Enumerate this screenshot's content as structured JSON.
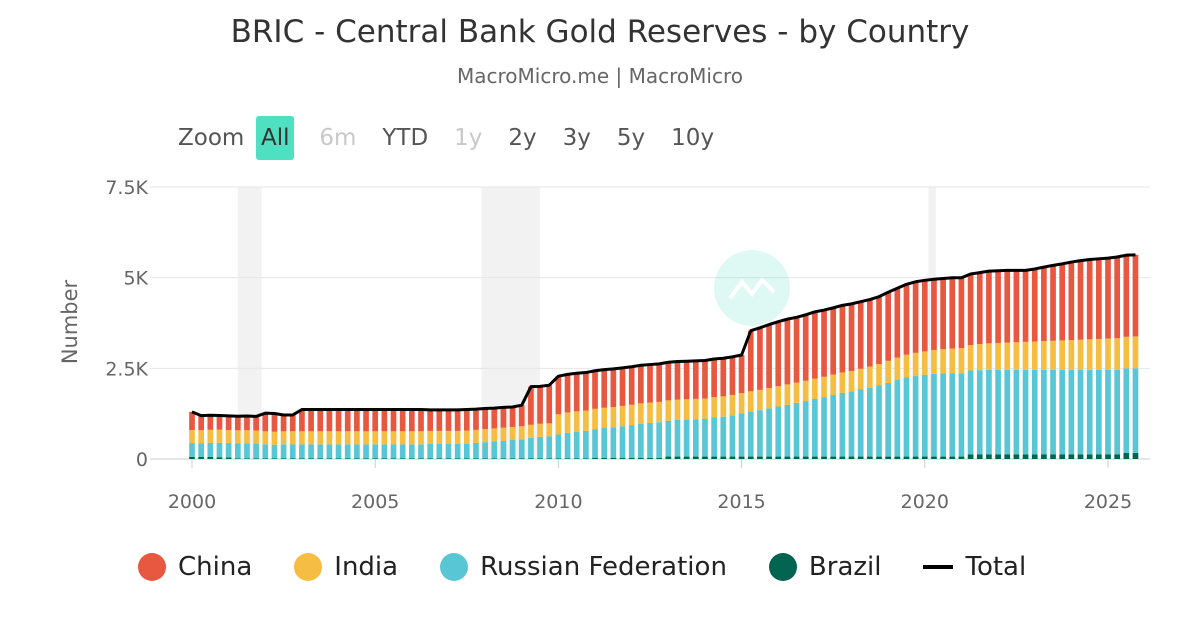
{
  "header": {
    "title": "BRIC - Central Bank Gold Reserves - by Country",
    "subtitle": "MacroMicro.me | MacroMicro"
  },
  "zoom": {
    "label": "Zoom",
    "buttons": [
      {
        "label": "All",
        "state": "active"
      },
      {
        "label": "6m",
        "state": "disabled"
      },
      {
        "label": "YTD",
        "state": "normal"
      },
      {
        "label": "1y",
        "state": "disabled"
      },
      {
        "label": "2y",
        "state": "normal"
      },
      {
        "label": "3y",
        "state": "normal"
      },
      {
        "label": "5y",
        "state": "normal"
      },
      {
        "label": "10y",
        "state": "normal"
      }
    ]
  },
  "colors": {
    "china": "#e8573f",
    "india": "#f6bd43",
    "russia": "#58c6d4",
    "brazil": "#006450",
    "total": "#000000",
    "accent": "#4fe0c1"
  },
  "chart_data": {
    "type": "bar",
    "stacked": true,
    "ylabel": "Number",
    "xlabel": "",
    "ylim": [
      0,
      7500
    ],
    "yticks": [
      {
        "value": 0,
        "label": "0"
      },
      {
        "value": 2500,
        "label": "2.5K"
      },
      {
        "value": 5000,
        "label": "5K"
      },
      {
        "value": 7500,
        "label": "7.5K"
      }
    ],
    "xlim": [
      2000,
      2026
    ],
    "xticks": [
      2000,
      2005,
      2010,
      2015,
      2020,
      2025
    ],
    "recessions": [
      [
        2001.25,
        2001.9
      ],
      [
        2007.9,
        2009.5
      ],
      [
        2020.1,
        2020.3
      ]
    ],
    "quarters": [
      2000.0,
      2000.25,
      2000.5,
      2000.75,
      2001.0,
      2001.25,
      2001.5,
      2001.75,
      2002.0,
      2002.25,
      2002.5,
      2002.75,
      2003.0,
      2003.25,
      2003.5,
      2003.75,
      2004.0,
      2004.25,
      2004.5,
      2004.75,
      2005.0,
      2005.25,
      2005.5,
      2005.75,
      2006.0,
      2006.25,
      2006.5,
      2006.75,
      2007.0,
      2007.25,
      2007.5,
      2007.75,
      2008.0,
      2008.25,
      2008.5,
      2008.75,
      2009.0,
      2009.25,
      2009.5,
      2009.75,
      2010.0,
      2010.25,
      2010.5,
      2010.75,
      2011.0,
      2011.25,
      2011.5,
      2011.75,
      2012.0,
      2012.25,
      2012.5,
      2012.75,
      2013.0,
      2013.25,
      2013.5,
      2013.75,
      2014.0,
      2014.25,
      2014.5,
      2014.75,
      2015.0,
      2015.25,
      2015.5,
      2015.75,
      2016.0,
      2016.25,
      2016.5,
      2016.75,
      2017.0,
      2017.25,
      2017.5,
      2017.75,
      2018.0,
      2018.25,
      2018.5,
      2018.75,
      2019.0,
      2019.25,
      2019.5,
      2019.75,
      2020.0,
      2020.25,
      2020.5,
      2020.75,
      2021.0,
      2021.25,
      2021.5,
      2021.75,
      2022.0,
      2022.25,
      2022.5,
      2022.75,
      2023.0,
      2023.25,
      2023.5,
      2023.75,
      2024.0,
      2024.25,
      2024.5,
      2024.75,
      2025.0,
      2025.25,
      2025.5,
      2025.75
    ],
    "series": [
      {
        "name": "Brazil",
        "key": "brazil",
        "values": [
          60,
          55,
          55,
          50,
          40,
          20,
          14,
          14,
          14,
          14,
          14,
          14,
          14,
          14,
          14,
          14,
          14,
          14,
          14,
          14,
          14,
          14,
          14,
          14,
          14,
          14,
          14,
          14,
          14,
          14,
          14,
          14,
          14,
          14,
          14,
          14,
          14,
          14,
          14,
          14,
          14,
          14,
          14,
          14,
          34,
          34,
          34,
          34,
          34,
          34,
          34,
          34,
          67,
          67,
          67,
          67,
          67,
          67,
          67,
          67,
          67,
          67,
          67,
          67,
          67,
          67,
          67,
          67,
          67,
          67,
          67,
          67,
          67,
          67,
          67,
          67,
          67,
          67,
          67,
          67,
          67,
          67,
          67,
          67,
          67,
          130,
          130,
          130,
          130,
          130,
          130,
          130,
          130,
          130,
          130,
          130,
          130,
          130,
          130,
          130,
          130,
          130,
          170,
          170
        ]
      },
      {
        "name": "Russian Federation",
        "key": "russia",
        "values": [
          380,
          380,
          390,
          400,
          400,
          410,
          420,
          410,
          390,
          380,
          390,
          390,
          390,
          390,
          390,
          390,
          390,
          390,
          390,
          390,
          390,
          390,
          390,
          390,
          390,
          390,
          400,
          400,
          400,
          400,
          410,
          430,
          450,
          470,
          490,
          510,
          530,
          570,
          600,
          610,
          660,
          710,
          740,
          760,
          790,
          820,
          840,
          870,
          900,
          940,
          960,
          980,
          990,
          1010,
          1020,
          1030,
          1040,
          1080,
          1100,
          1140,
          1190,
          1240,
          1280,
          1330,
          1380,
          1430,
          1480,
          1530,
          1590,
          1640,
          1700,
          1760,
          1800,
          1860,
          1900,
          1960,
          2030,
          2110,
          2180,
          2220,
          2250,
          2280,
          2290,
          2300,
          2300,
          2310,
          2320,
          2330,
          2330,
          2330,
          2330,
          2330,
          2330,
          2330,
          2330,
          2330,
          2330,
          2330,
          2330,
          2330,
          2330,
          2330,
          2330,
          2330
        ]
      },
      {
        "name": "India",
        "key": "india",
        "values": [
          360,
          360,
          360,
          360,
          360,
          360,
          360,
          360,
          360,
          360,
          360,
          360,
          360,
          360,
          360,
          360,
          360,
          360,
          360,
          360,
          360,
          360,
          360,
          360,
          360,
          360,
          360,
          360,
          360,
          360,
          360,
          360,
          360,
          360,
          360,
          360,
          360,
          360,
          360,
          360,
          560,
          560,
          560,
          560,
          560,
          560,
          560,
          560,
          560,
          560,
          560,
          560,
          560,
          560,
          560,
          560,
          560,
          560,
          560,
          560,
          560,
          560,
          560,
          560,
          560,
          560,
          560,
          560,
          560,
          560,
          560,
          560,
          560,
          560,
          580,
          590,
          610,
          620,
          630,
          640,
          650,
          660,
          670,
          680,
          690,
          700,
          720,
          730,
          740,
          750,
          760,
          770,
          780,
          790,
          800,
          810,
          820,
          830,
          840,
          850,
          860,
          870,
          870,
          880
        ]
      },
      {
        "name": "China",
        "key": "china",
        "values": [
          500,
          400,
          400,
          390,
          390,
          390,
          390,
          390,
          500,
          500,
          450,
          450,
          600,
          600,
          600,
          600,
          600,
          600,
          600,
          600,
          600,
          600,
          600,
          600,
          600,
          600,
          580,
          580,
          580,
          580,
          580,
          570,
          570,
          560,
          560,
          550,
          580,
          1050,
          1010,
          1050,
          1050,
          1050,
          1050,
          1050,
          1050,
          1050,
          1050,
          1050,
          1050,
          1050,
          1050,
          1050,
          1050,
          1050,
          1050,
          1050,
          1050,
          1050,
          1050,
          1050,
          1050,
          1670,
          1710,
          1750,
          1780,
          1800,
          1800,
          1820,
          1840,
          1840,
          1840,
          1840,
          1840,
          1840,
          1850,
          1860,
          1890,
          1910,
          1940,
          1960,
          1960,
          1950,
          1950,
          1950,
          1940,
          1960,
          1970,
          1990,
          1990,
          1990,
          1980,
          1970,
          2000,
          2040,
          2080,
          2110,
          2150,
          2180,
          2200,
          2210,
          2220,
          2240,
          2250,
          2250
        ]
      },
      {
        "name": "Total",
        "key": "total",
        "type": "line",
        "values": [
          1300,
          1195,
          1205,
          1200,
          1190,
          1180,
          1184,
          1174,
          1264,
          1254,
          1214,
          1214,
          1364,
          1364,
          1364,
          1364,
          1364,
          1364,
          1364,
          1364,
          1364,
          1364,
          1364,
          1364,
          1364,
          1364,
          1354,
          1354,
          1354,
          1354,
          1364,
          1374,
          1394,
          1404,
          1424,
          1434,
          1484,
          1994,
          2004,
          2034,
          2284,
          2334,
          2364,
          2384,
          2434,
          2464,
          2484,
          2514,
          2544,
          2584,
          2604,
          2624,
          2667,
          2687,
          2697,
          2707,
          2717,
          2757,
          2777,
          2817,
          2867,
          3537,
          3617,
          3707,
          3787,
          3857,
          3907,
          3977,
          4057,
          4107,
          4167,
          4237,
          4277,
          4337,
          4397,
          4477,
          4597,
          4707,
          4817,
          4887,
          4927,
          4957,
          4977,
          4997,
          4997,
          5100,
          5140,
          5180,
          5190,
          5200,
          5200,
          5200,
          5240,
          5290,
          5340,
          5380,
          5430,
          5470,
          5500,
          5520,
          5540,
          5570,
          5620,
          5630
        ]
      }
    ]
  },
  "legend": [
    {
      "label": "China",
      "key": "china",
      "marker": "dot"
    },
    {
      "label": "India",
      "key": "india",
      "marker": "dot"
    },
    {
      "label": "Russian Federation",
      "key": "russia",
      "marker": "dot"
    },
    {
      "label": "Brazil",
      "key": "brazil",
      "marker": "dot"
    },
    {
      "label": "Total",
      "key": "total",
      "marker": "line"
    }
  ]
}
